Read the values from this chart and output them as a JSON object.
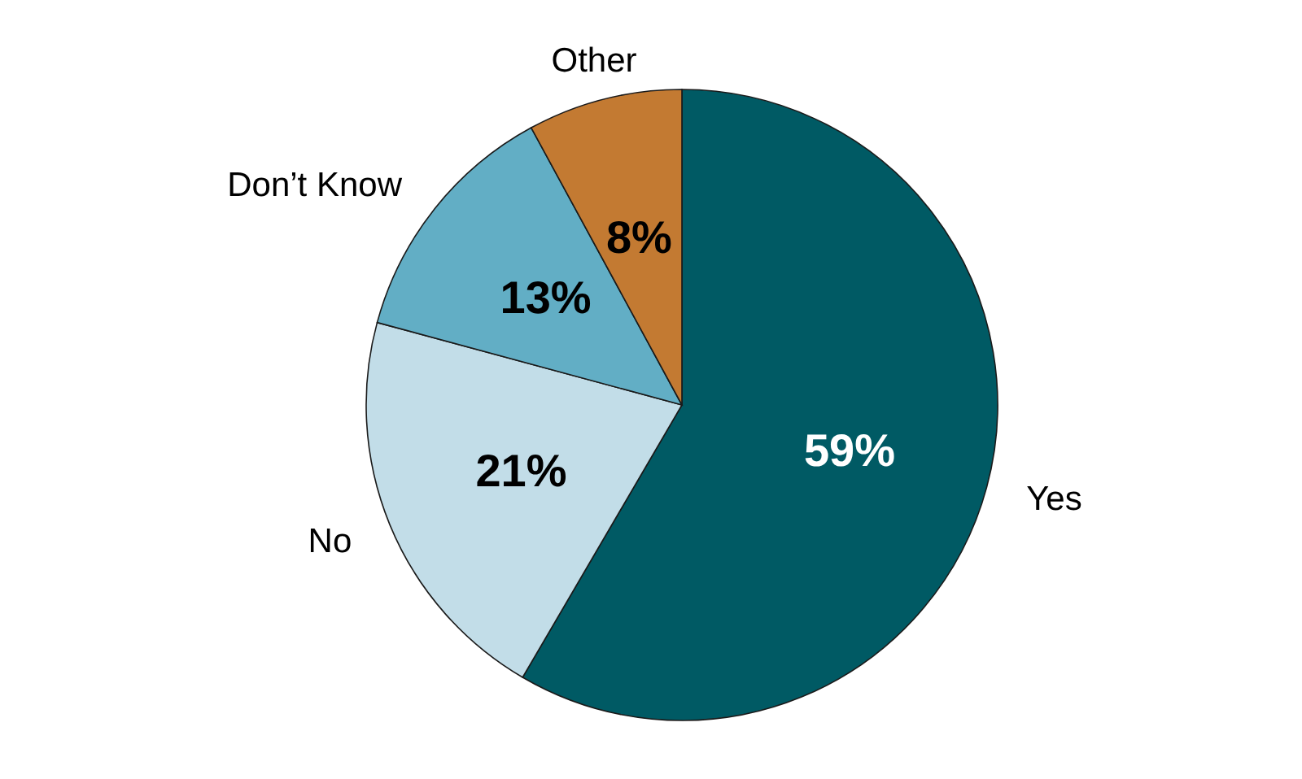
{
  "chart_data": {
    "type": "pie",
    "categories": [
      "Yes",
      "No",
      "Don’t Know",
      "Other"
    ],
    "values": [
      59,
      21,
      13,
      8
    ],
    "colors": [
      "#005a64",
      "#c2dde8",
      "#62aec5",
      "#c37a32"
    ],
    "value_labels": [
      "59%",
      "21%",
      "13%",
      "8%"
    ]
  }
}
